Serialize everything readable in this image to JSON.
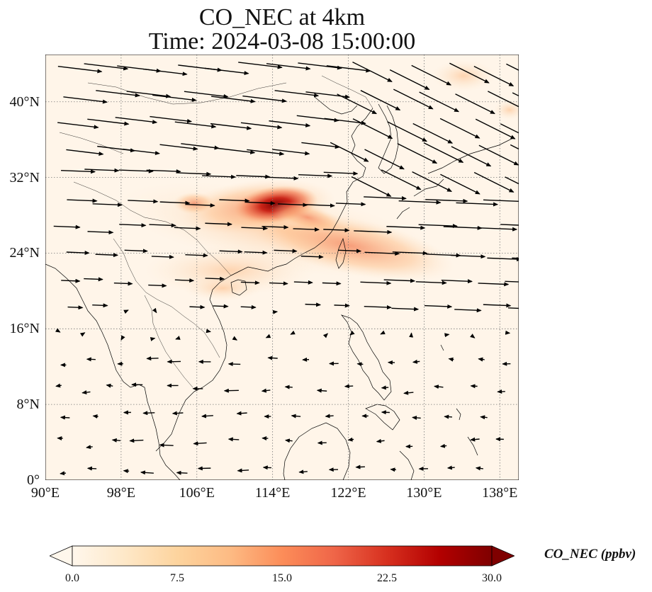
{
  "title": {
    "line1": "CO_NEC at 4km",
    "line2": "Time: 2024-03-08 15:00:00"
  },
  "map": {
    "region": "East and Southeast Asia",
    "projection": "PlateCarree",
    "lon_range": [
      90,
      140
    ],
    "lat_range": [
      0,
      45
    ],
    "gridlines": "dotted",
    "background_color": "#fff5e9",
    "wind_vectors": "black arrows, westerly flow north of ~18°N, easterly flow south of ~16°N",
    "lat_ticks": [
      "0°",
      "8°N",
      "16°N",
      "24°N",
      "32°N",
      "40°N"
    ],
    "lon_ticks": [
      "90°E",
      "98°E",
      "106°E",
      "114°E",
      "122°E",
      "130°E",
      "138°E"
    ]
  },
  "colorbar": {
    "label": "CO_NEC (ppbv)",
    "colormap": "OrRd",
    "range": [
      0,
      30
    ],
    "extend": "both",
    "ticks": [
      "0.0",
      "7.5",
      "15.0",
      "22.5",
      "30.0"
    ],
    "colors": [
      "#fff7ec",
      "#fee8c8",
      "#fdd49e",
      "#fdbb84",
      "#fc8d59",
      "#ef6548",
      "#d7301f",
      "#b30000",
      "#7f0000"
    ]
  }
}
